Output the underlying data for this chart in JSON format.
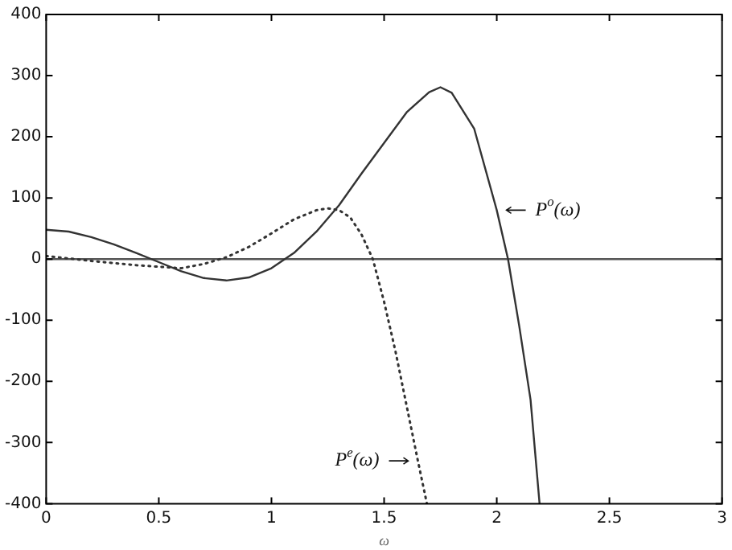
{
  "chart_data": {
    "type": "line",
    "xlabel": "ω",
    "xlim": [
      0,
      3
    ],
    "ylim": [
      -400,
      400
    ],
    "xticks": [
      0,
      0.5,
      1,
      1.5,
      2,
      2.5,
      3
    ],
    "yticks": [
      -400,
      -300,
      -200,
      -100,
      0,
      100,
      200,
      300,
      400
    ],
    "grid": false,
    "legend": false,
    "marker": "none",
    "series": [
      {
        "name": "P$^{o}$(ω)",
        "color": "#333333",
        "line_style": "solid",
        "x": [
          0,
          0.1,
          0.2,
          0.3,
          0.4,
          0.5,
          0.6,
          0.7,
          0.8,
          0.9,
          1.0,
          1.1,
          1.2,
          1.3,
          1.4,
          1.5,
          1.6,
          1.7,
          1.75,
          1.8,
          1.9,
          2.0,
          2.05,
          2.1,
          2.15,
          2.19
        ],
        "values": [
          48,
          45,
          36,
          24,
          10,
          -5,
          -20,
          -31,
          -35,
          -30,
          -15,
          10,
          45,
          88,
          140,
          190,
          240,
          273,
          281,
          272,
          213,
          80,
          0,
          -110,
          -230,
          -400
        ]
      },
      {
        "name": "P$^{e}$(ω)",
        "color": "#333333",
        "line_style": "dotted",
        "x": [
          0,
          0.2,
          0.4,
          0.6,
          0.7,
          0.8,
          0.9,
          1.0,
          1.1,
          1.2,
          1.25,
          1.3,
          1.35,
          1.4,
          1.45,
          1.5,
          1.55,
          1.6,
          1.65,
          1.69
        ],
        "values": [
          5,
          -3,
          -10,
          -15,
          -8,
          3,
          20,
          42,
          65,
          80,
          83,
          80,
          68,
          40,
          0,
          -70,
          -150,
          -240,
          -330,
          -400
        ]
      }
    ],
    "ref_lines": [
      {
        "axis": "y",
        "value": 0,
        "color": "#555555"
      }
    ]
  }
}
